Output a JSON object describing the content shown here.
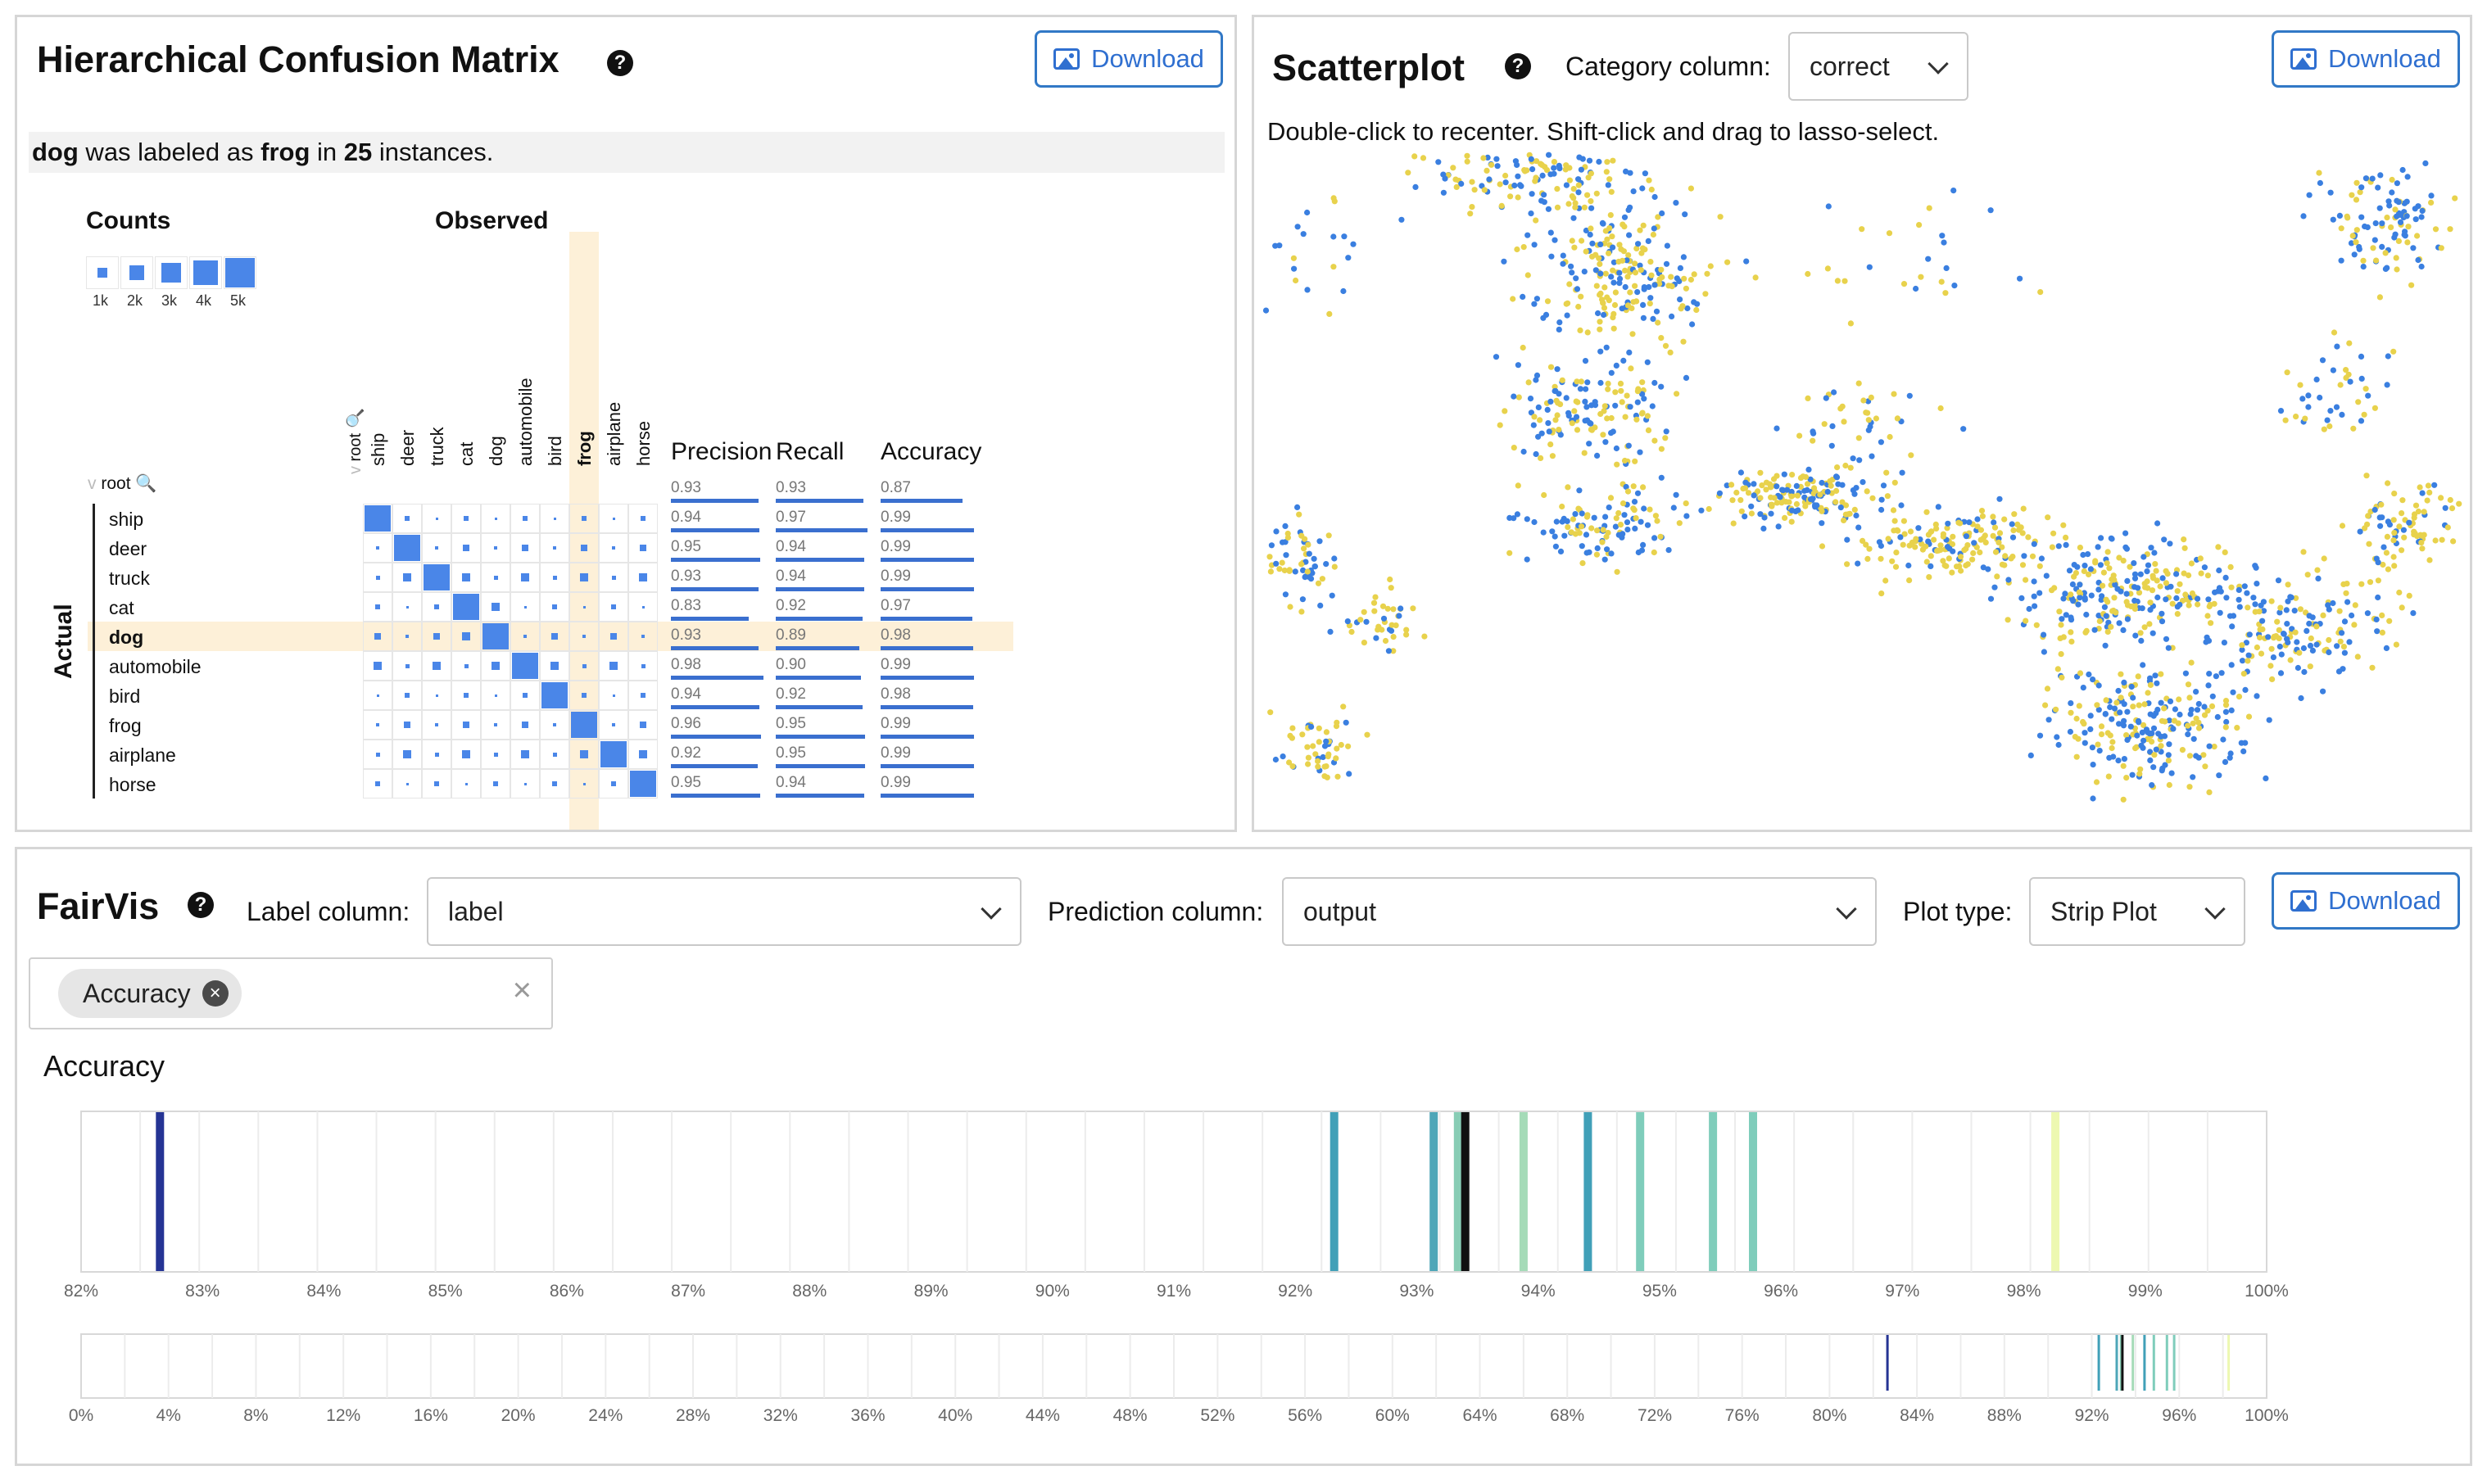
{
  "hcm": {
    "title": "Hierarchical Confusion Matrix",
    "download_label": "Download",
    "status": {
      "actual": "dog",
      "mid1": " was labeled as ",
      "predicted": "frog",
      "mid2": " in ",
      "count": "25",
      "end": " instances."
    },
    "counts_title": "Counts",
    "counts_legend": [
      "1k",
      "2k",
      "3k",
      "4k",
      "5k"
    ],
    "observed_title": "Observed",
    "actual_title": "Actual",
    "root_label": "root",
    "columns": [
      "ship",
      "deer",
      "truck",
      "cat",
      "dog",
      "automobile",
      "bird",
      "frog",
      "airplane",
      "horse"
    ],
    "rows": [
      "ship",
      "deer",
      "truck",
      "cat",
      "dog",
      "automobile",
      "bird",
      "frog",
      "airplane",
      "horse"
    ],
    "highlight_row": "dog",
    "highlight_col": "frog",
    "metric_headers": [
      "Precision",
      "Recall",
      "Accuracy"
    ],
    "root_metrics": [
      "0.93",
      "0.93",
      "0.87"
    ],
    "metrics": [
      [
        "0.94",
        "0.97",
        "0.99"
      ],
      [
        "0.95",
        "0.94",
        "0.99"
      ],
      [
        "0.93",
        "0.94",
        "0.99"
      ],
      [
        "0.83",
        "0.92",
        "0.97"
      ],
      [
        "0.93",
        "0.89",
        "0.98"
      ],
      [
        "0.98",
        "0.90",
        "0.99"
      ],
      [
        "0.94",
        "0.92",
        "0.98"
      ],
      [
        "0.96",
        "0.95",
        "0.99"
      ],
      [
        "0.92",
        "0.95",
        "0.99"
      ],
      [
        "0.95",
        "0.94",
        "0.99"
      ]
    ],
    "accent_color": "#4a86e8",
    "highlight_color": "#fdf0d8"
  },
  "scatter": {
    "title": "Scatterplot",
    "category_label": "Category column:",
    "category_value": "correct",
    "download_label": "Download",
    "hint": "Double-click to recenter. Shift-click and drag to lasso-select.",
    "colors": [
      "#3a7fe0",
      "#e8d24c"
    ]
  },
  "fairvis": {
    "title": "FairVis",
    "label_column_label": "Label column:",
    "label_column_value": "label",
    "prediction_column_label": "Prediction column:",
    "prediction_column_value": "output",
    "plot_type_label": "Plot type:",
    "plot_type_value": "Strip Plot",
    "download_label": "Download",
    "chip_label": "Accuracy",
    "clear_icon": "close-icon",
    "chart_title": "Accuracy"
  },
  "chart_data": [
    {
      "type": "strip",
      "title": "Accuracy",
      "xlim": [
        0.82,
        1.0
      ],
      "xticks": [
        "82%",
        "83%",
        "84%",
        "85%",
        "86%",
        "87%",
        "88%",
        "89%",
        "90%",
        "91%",
        "92%",
        "93%",
        "94%",
        "95%",
        "96%",
        "97%",
        "98%",
        "99%",
        "100%"
      ],
      "values": [
        0.8265,
        0.9232,
        0.9314,
        0.9334,
        0.934,
        0.9388,
        0.9441,
        0.9484,
        0.9544,
        0.9577,
        0.9826
      ],
      "colors": [
        "#253494",
        "#41a0b8",
        "#4ea6b8",
        "#88cdb5",
        "#111111",
        "#a5dbb8",
        "#41a0b8",
        "#7fcdbb",
        "#7fcdbb",
        "#7fcdbb",
        "#edf8b1"
      ]
    },
    {
      "type": "strip",
      "xlim": [
        0.0,
        1.0
      ],
      "xticks": [
        "0%",
        "4%",
        "8%",
        "12%",
        "16%",
        "20%",
        "24%",
        "28%",
        "32%",
        "36%",
        "40%",
        "44%",
        "48%",
        "52%",
        "56%",
        "60%",
        "64%",
        "68%",
        "72%",
        "76%",
        "80%",
        "84%",
        "88%",
        "92%",
        "96%",
        "100%"
      ],
      "values": [
        0.8265,
        0.9232,
        0.9314,
        0.9334,
        0.934,
        0.9388,
        0.9441,
        0.9484,
        0.9544,
        0.9577,
        0.9826
      ],
      "colors": [
        "#253494",
        "#41a0b8",
        "#4ea6b8",
        "#88cdb5",
        "#111111",
        "#a5dbb8",
        "#41a0b8",
        "#7fcdbb",
        "#7fcdbb",
        "#7fcdbb",
        "#edf8b1"
      ]
    }
  ]
}
